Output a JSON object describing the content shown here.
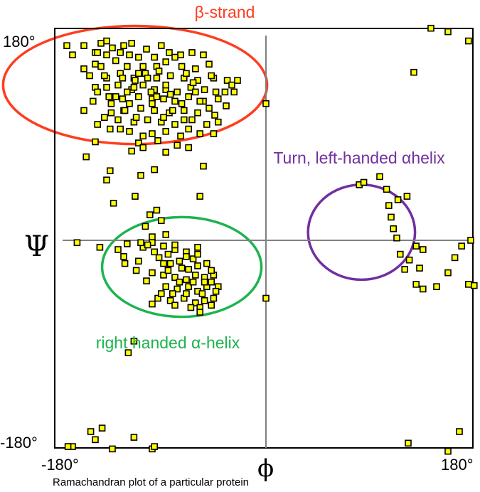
{
  "chart_data": {
    "type": "scatter",
    "caption": "Ramachandran plot of a particular protein",
    "xlabel": "ϕ",
    "ylabel": "Ψ",
    "xlim": [
      -180,
      180
    ],
    "ylim": [
      -180,
      180
    ],
    "x_ticks": [
      "-180°",
      "180°"
    ],
    "y_ticks": [
      "180°",
      "-180°"
    ],
    "grid": false,
    "marker_color": "#ffff00",
    "regions": [
      {
        "label": "β-strand",
        "color": "#ff3d1f",
        "center": [
          -115,
          134
        ],
        "radius": [
          116,
          51
        ]
      },
      {
        "label": "right handed α-helix",
        "color": "#1db350",
        "center": [
          -74,
          -23
        ],
        "radius": [
          70,
          43
        ]
      },
      {
        "label": "Turn, left-handed αhelix",
        "color": "#7030a0",
        "center": [
          84,
          7
        ],
        "radius": [
          47,
          41
        ]
      }
    ],
    "points": [
      [
        -175,
        168
      ],
      [
        -170,
        160
      ],
      [
        -160,
        168
      ],
      [
        -150,
        162
      ],
      [
        -140,
        160
      ],
      [
        -128,
        162
      ],
      [
        -120,
        160
      ],
      [
        -105,
        165
      ],
      [
        -92,
        168
      ],
      [
        -85,
        162
      ],
      [
        -75,
        160
      ],
      [
        -65,
        162
      ],
      [
        -55,
        160
      ],
      [
        -140,
        172
      ],
      [
        -160,
        148
      ],
      [
        -150,
        152
      ],
      [
        -132,
        155
      ],
      [
        -122,
        150
      ],
      [
        -108,
        150
      ],
      [
        -96,
        150
      ],
      [
        -88,
        154
      ],
      [
        -74,
        150
      ],
      [
        -62,
        148
      ],
      [
        -50,
        152
      ],
      [
        -155,
        142
      ],
      [
        -140,
        140
      ],
      [
        -128,
        144
      ],
      [
        -116,
        140
      ],
      [
        -106,
        144
      ],
      [
        -96,
        140
      ],
      [
        -84,
        142
      ],
      [
        -72,
        140
      ],
      [
        -60,
        138
      ],
      [
        -46,
        140
      ],
      [
        -34,
        138
      ],
      [
        -25,
        138
      ],
      [
        -150,
        132
      ],
      [
        -140,
        132
      ],
      [
        -130,
        134
      ],
      [
        -118,
        130
      ],
      [
        -108,
        134
      ],
      [
        -98,
        130
      ],
      [
        -88,
        130
      ],
      [
        -78,
        128
      ],
      [
        -66,
        132
      ],
      [
        -54,
        130
      ],
      [
        -44,
        128
      ],
      [
        -30,
        134
      ],
      [
        -138,
        124
      ],
      [
        -126,
        122
      ],
      [
        -112,
        124
      ],
      [
        -100,
        122
      ],
      [
        -90,
        122
      ],
      [
        -80,
        120
      ],
      [
        -68,
        124
      ],
      [
        -55,
        120
      ],
      [
        -42,
        122
      ],
      [
        -125,
        112
      ],
      [
        -110,
        114
      ],
      [
        -98,
        112
      ],
      [
        -85,
        110
      ],
      [
        -72,
        112
      ],
      [
        -60,
        110
      ],
      [
        -50,
        114
      ],
      [
        -35,
        116
      ],
      [
        -130,
        104
      ],
      [
        -116,
        102
      ],
      [
        -104,
        104
      ],
      [
        -92,
        102
      ],
      [
        -80,
        100
      ],
      [
        -65,
        104
      ],
      [
        -52,
        100
      ],
      [
        -42,
        102
      ],
      [
        -120,
        94
      ],
      [
        -100,
        92
      ],
      [
        -88,
        94
      ],
      [
        -75,
        90
      ],
      [
        -58,
        92
      ],
      [
        -112,
        84
      ],
      [
        -95,
        86
      ],
      [
        -78,
        82
      ],
      [
        -145,
        170
      ],
      [
        -135,
        166
      ],
      [
        -112,
        158
      ],
      [
        -98,
        158
      ],
      [
        -80,
        158
      ],
      [
        -118,
        170
      ],
      [
        -148,
        162
      ],
      [
        -125,
        168
      ],
      [
        -145,
        150
      ],
      [
        -136,
        118
      ],
      [
        -124,
        112
      ],
      [
        -114,
        106
      ],
      [
        -148,
        128
      ],
      [
        -160,
        112
      ],
      [
        -142,
        106
      ],
      [
        -128,
        96
      ],
      [
        -108,
        90
      ],
      [
        -68,
        96
      ],
      [
        -58,
        120
      ],
      [
        -45,
        108
      ],
      [
        -36,
        128
      ],
      [
        -28,
        128
      ],
      [
        -48,
        142
      ],
      [
        -88,
        134
      ],
      [
        -101,
        128
      ],
      [
        -116,
        132
      ],
      [
        -132,
        124
      ],
      [
        -126,
        140
      ],
      [
        -112,
        144
      ],
      [
        -94,
        146
      ],
      [
        -70,
        144
      ],
      [
        -62,
        128
      ],
      [
        -108,
        80
      ],
      [
        -88,
        76
      ],
      [
        -142,
        142
      ],
      [
        -152,
        120
      ],
      [
        -100,
        118
      ],
      [
        -82,
        112
      ],
      [
        -72,
        104
      ],
      [
        -90,
        106
      ],
      [
        -122,
        128
      ],
      [
        -104,
        140
      ],
      [
        -136,
        110
      ],
      [
        -148,
        100
      ],
      [
        -120,
        118
      ],
      [
        -96,
        124
      ],
      [
        -115,
        138
      ],
      [
        -84,
        126
      ],
      [
        -46,
        92
      ],
      [
        -74,
        118
      ],
      [
        -64,
        136
      ],
      [
        -118,
        77
      ],
      [
        -137,
        60
      ],
      [
        -110,
        56
      ],
      [
        -98,
        61
      ],
      [
        -140,
        52
      ],
      [
        -68,
        80
      ],
      [
        -55,
        64
      ],
      [
        -137,
        96
      ],
      [
        -150,
        85
      ],
      [
        -158,
        72
      ],
      [
        -58,
        38
      ],
      [
        -134,
        32
      ],
      [
        -115,
        38
      ],
      [
        -102,
        22
      ],
      [
        -96,
        26
      ],
      [
        -106,
        12
      ],
      [
        -100,
        3
      ],
      [
        -92,
        17
      ],
      [
        -88,
        5
      ],
      [
        -166,
        -2
      ],
      [
        -146,
        -6
      ],
      [
        -122,
        -3
      ],
      [
        -108,
        -6
      ],
      [
        -100,
        -2
      ],
      [
        -90,
        -5
      ],
      [
        -80,
        -8
      ],
      [
        -70,
        -10
      ],
      [
        -60,
        -6
      ],
      [
        -125,
        -14
      ],
      [
        -112,
        -18
      ],
      [
        -94,
        -15
      ],
      [
        -84,
        -20
      ],
      [
        -76,
        -18
      ],
      [
        -68,
        -25
      ],
      [
        -60,
        -22
      ],
      [
        -52,
        -20
      ],
      [
        -100,
        -28
      ],
      [
        -90,
        -30
      ],
      [
        -80,
        -32
      ],
      [
        -70,
        -34
      ],
      [
        -62,
        -30
      ],
      [
        -54,
        -32
      ],
      [
        -46,
        -30
      ],
      [
        -88,
        -40
      ],
      [
        -78,
        -42
      ],
      [
        -68,
        -40
      ],
      [
        -60,
        -44
      ],
      [
        -52,
        -40
      ],
      [
        -42,
        -40
      ],
      [
        -95,
        -50
      ],
      [
        -84,
        -52
      ],
      [
        -72,
        -50
      ],
      [
        -62,
        -54
      ],
      [
        -54,
        -52
      ],
      [
        -46,
        -50
      ],
      [
        -100,
        -55
      ],
      [
        -80,
        -56
      ],
      [
        -66,
        -58
      ],
      [
        -58,
        -58
      ],
      [
        -48,
        -56
      ],
      [
        -44,
        -44
      ],
      [
        -74,
        -24
      ],
      [
        -86,
        -12
      ],
      [
        -110,
        -2
      ],
      [
        -130,
        -8
      ],
      [
        -64,
        -16
      ],
      [
        -70,
        -46
      ],
      [
        -98,
        -10
      ],
      [
        -105,
        -35
      ],
      [
        -56,
        -46
      ],
      [
        -114,
        -26
      ],
      [
        -92,
        -46
      ],
      [
        -76,
        -36
      ],
      [
        -86,
        -26
      ],
      [
        -54,
        -36
      ],
      [
        -80,
        -4
      ],
      [
        -64,
        -36
      ],
      [
        -48,
        -36
      ],
      [
        -60,
        -12
      ],
      [
        -104,
        -4
      ],
      [
        -124,
        -20
      ],
      [
        -82,
        -46
      ],
      [
        -58,
        -62
      ],
      [
        -70,
        -14
      ],
      [
        -48,
        -26
      ],
      [
        -90,
        -20
      ],
      [
        -116,
        -87
      ],
      [
        -121,
        -97
      ],
      [
        -150,
        -172
      ],
      [
        -154,
        -165
      ],
      [
        -170,
        -178
      ],
      [
        -100,
        -180
      ],
      [
        -116,
        -170
      ],
      [
        -174,
        -178
      ],
      [
        -98,
        -178
      ],
      [
        -135,
        -180
      ],
      [
        -144,
        -162
      ],
      [
        178,
        172
      ],
      [
        160,
        180
      ],
      [
        145,
        183
      ],
      [
        130,
        145
      ],
      [
        0,
        118
      ],
      [
        0,
        -50
      ],
      [
        100,
        55
      ],
      [
        106,
        44
      ],
      [
        108,
        30
      ],
      [
        110,
        20
      ],
      [
        112,
        10
      ],
      [
        115,
        2
      ],
      [
        118,
        -12
      ],
      [
        122,
        -25
      ],
      [
        126,
        -17
      ],
      [
        132,
        -5
      ],
      [
        138,
        -8
      ],
      [
        135,
        -24
      ],
      [
        132,
        -38
      ],
      [
        138,
        -42
      ],
      [
        150,
        -40
      ],
      [
        160,
        -28
      ],
      [
        166,
        -15
      ],
      [
        172,
        -5
      ],
      [
        180,
        0
      ],
      [
        178,
        -38
      ],
      [
        183,
        -39
      ],
      [
        124,
        38
      ],
      [
        116,
        35
      ],
      [
        82,
        48
      ],
      [
        86,
        50
      ],
      [
        125,
        -175
      ],
      [
        170,
        -165
      ],
      [
        195,
        -167
      ],
      [
        160,
        -182
      ]
    ]
  }
}
